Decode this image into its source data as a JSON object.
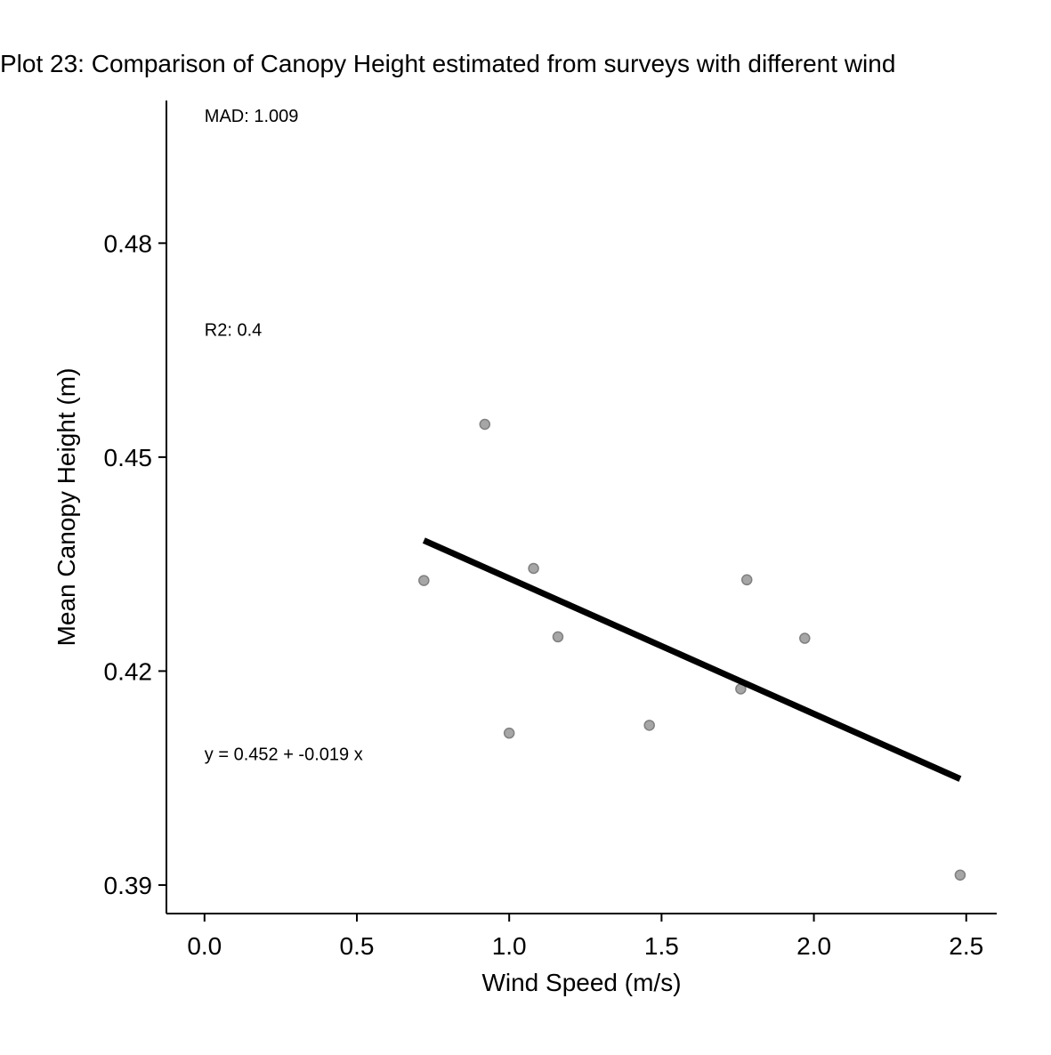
{
  "chart_data": {
    "type": "scatter",
    "title": "Plot 23: Comparison of Canopy Height estimated from surveys with different wind",
    "xlabel": "Wind Speed (m/s)",
    "ylabel": "Mean Canopy Height (m)",
    "xlim": [
      -0.125,
      2.6
    ],
    "ylim": [
      0.386,
      0.5
    ],
    "x_ticks": [
      0.0,
      0.5,
      1.0,
      1.5,
      2.0,
      2.5
    ],
    "x_tick_labels": [
      "0.0",
      "0.5",
      "1.0",
      "1.5",
      "2.0",
      "2.5"
    ],
    "y_ticks": [
      0.39,
      0.42,
      0.45,
      0.48
    ],
    "y_tick_labels": [
      "0.39",
      "0.42",
      "0.45",
      "0.48"
    ],
    "grid": false,
    "legend": "none",
    "point_color": "#a6a6a6",
    "point_stroke": "#808080",
    "line_color": "#000000",
    "points": [
      {
        "x": 0.72,
        "y": 0.4327
      },
      {
        "x": 0.92,
        "y": 0.4546
      },
      {
        "x": 1.0,
        "y": 0.4113
      },
      {
        "x": 1.08,
        "y": 0.4344
      },
      {
        "x": 1.16,
        "y": 0.4248
      },
      {
        "x": 1.46,
        "y": 0.4124
      },
      {
        "x": 1.76,
        "y": 0.4175
      },
      {
        "x": 1.78,
        "y": 0.4328
      },
      {
        "x": 1.97,
        "y": 0.4246
      },
      {
        "x": 2.48,
        "y": 0.3914
      }
    ],
    "fit_line": {
      "intercept": 0.452,
      "slope": -0.019,
      "x_start": 0.72,
      "x_end": 2.48
    },
    "annotations": [
      {
        "text": "MAD: 1.009",
        "x": 0.0,
        "y": 0.497
      },
      {
        "text": "R2: 0.4",
        "x": 0.0,
        "y": 0.467
      },
      {
        "text": "y =  0.452 + -0.019 x",
        "x": 0.0,
        "y": 0.4075
      }
    ]
  }
}
